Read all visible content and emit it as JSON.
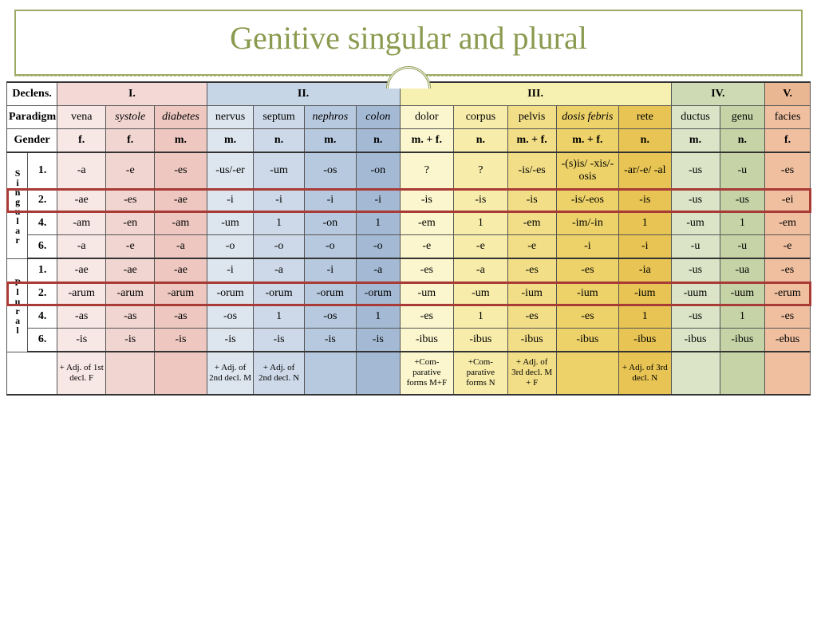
{
  "title": "Genitive singular and plural",
  "labels": {
    "declens": "Declens.",
    "paradigm": "Paradigm",
    "gender": "Gender",
    "singular": "Singular",
    "plural": "Plural"
  },
  "declensions": [
    "I.",
    "II.",
    "III.",
    "IV.",
    "V."
  ],
  "paradigms": [
    "vena",
    "systole",
    "diabetes",
    "nervus",
    "septum",
    "nephros",
    "colon",
    "dolor",
    "corpus",
    "pelvis",
    "dosis febris",
    "rete",
    "ductus",
    "genu",
    "facies"
  ],
  "paradigm_italic": [
    false,
    true,
    true,
    false,
    false,
    true,
    true,
    false,
    false,
    false,
    true,
    false,
    false,
    false,
    false
  ],
  "genders": [
    "f.",
    "f.",
    "m.",
    "m.",
    "n.",
    "m.",
    "n.",
    "m. + f.",
    "n.",
    "m. + f.",
    "m. + f.",
    "n.",
    "m.",
    "n.",
    "f."
  ],
  "rows": {
    "s1": {
      "n": "1.",
      "v": [
        "-a",
        "-e",
        "-es",
        "-us/-er",
        "-um",
        "-os",
        "-on",
        "?",
        "?",
        "-is/-es",
        "-(s)is/ -xis/-osis",
        "-ar/-e/ -al",
        "-us",
        "-u",
        "-es"
      ]
    },
    "s2": {
      "n": "2.",
      "v": [
        "-ae",
        "-es",
        "-ae",
        "-i",
        "-i",
        "-i",
        "-i",
        "-is",
        "-is",
        "-is",
        "-is/-eos",
        "-is",
        "-us",
        "-us",
        "-ei"
      ]
    },
    "s4": {
      "n": "4.",
      "v": [
        "-am",
        "-en",
        "-am",
        "-um",
        "1",
        "-on",
        "1",
        "-em",
        "1",
        "-em",
        "-im/-in",
        "1",
        "-um",
        "1",
        "-em"
      ]
    },
    "s6": {
      "n": "6.",
      "v": [
        "-a",
        "-e",
        "-a",
        "-o",
        "-o",
        "-o",
        "-o",
        "-e",
        "-e",
        "-e",
        "-i",
        "-i",
        "-u",
        "-u",
        "-e"
      ]
    },
    "p1": {
      "n": "1.",
      "v": [
        "-ae",
        "-ae",
        "-ae",
        "-i",
        "-a",
        "-i",
        "-a",
        "-es",
        "-a",
        "-es",
        "-es",
        "-ia",
        "-us",
        "-ua",
        "-es"
      ]
    },
    "p2": {
      "n": "2.",
      "v": [
        "-arum",
        "-arum",
        "-arum",
        "-orum",
        "-orum",
        "-orum",
        "-orum",
        "-um",
        "-um",
        "-ium",
        "-ium",
        "-ium",
        "-uum",
        "-uum",
        "-erum"
      ]
    },
    "p4": {
      "n": "4.",
      "v": [
        "-as",
        "-as",
        "-as",
        "-os",
        "1",
        "-os",
        "1",
        "-es",
        "1",
        "-es",
        "-es",
        "1",
        "-us",
        "1",
        "-es"
      ]
    },
    "p6": {
      "n": "6.",
      "v": [
        "-is",
        "-is",
        "-is",
        "-is",
        "-is",
        "-is",
        "-is",
        "-ibus",
        "-ibus",
        "-ibus",
        "-ibus",
        "-ibus",
        "-ibus",
        "-ibus",
        "-ebus"
      ]
    }
  },
  "footer": [
    "+ Adj. of 1st decl. F",
    "",
    "",
    "+ Adj. of 2nd decl. M",
    "+ Adj. of 2nd decl. N",
    "",
    "",
    "+Com- parative forms M+F",
    "+Com- parative forms N",
    "+ Adj. of 3rd decl. M + F",
    "",
    "+ Adj. of 3rd decl. N",
    "",
    "",
    ""
  ],
  "col_classes": [
    "c1a",
    "c1b",
    "c1c",
    "c2a",
    "c2b",
    "c2c",
    "c2d",
    "c3a",
    "c3b",
    "c3c",
    "c3d",
    "c3e",
    "c4a",
    "c4b",
    "c5a"
  ]
}
